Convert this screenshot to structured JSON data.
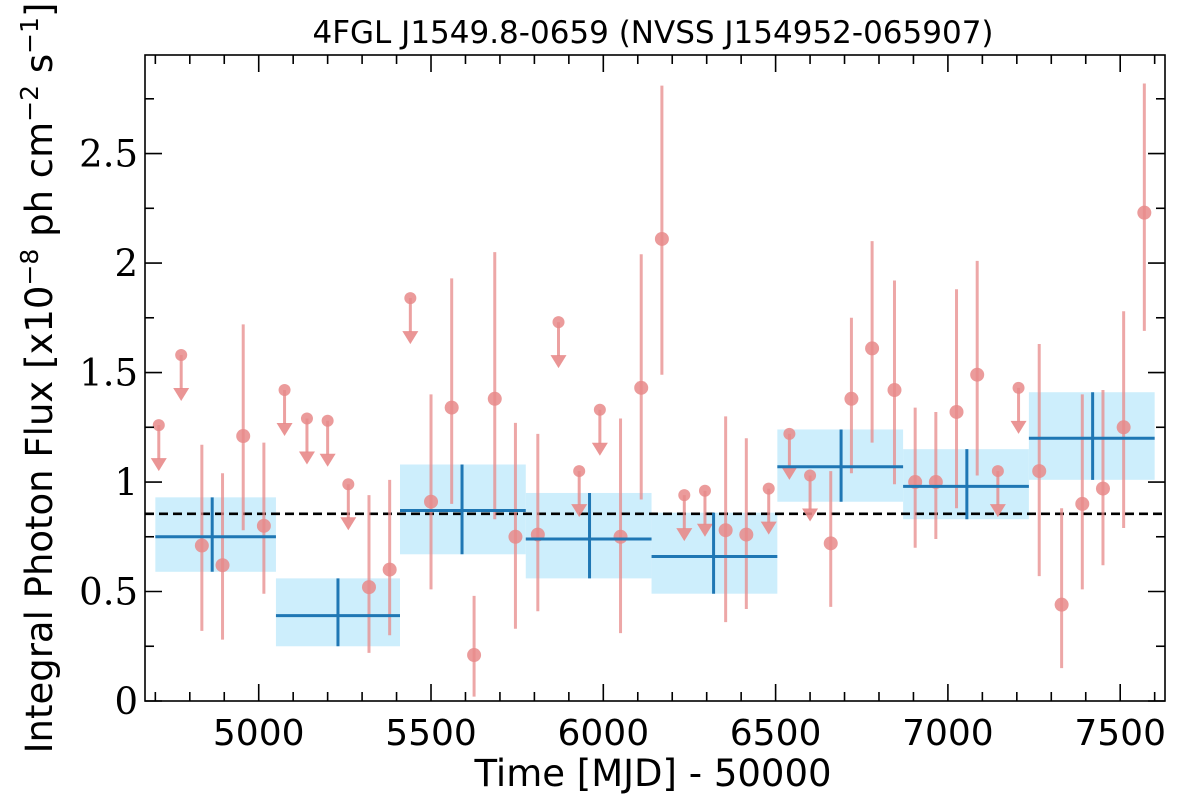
{
  "chart_data": {
    "type": "scatter",
    "title": "4FGL J1549.8-0659 (NVSS J154952-065907)",
    "xlabel": "Time [MJD] - 50000",
    "ylabel": "Integral Photon Flux [x10",
    "ylabel_exp1": "−8",
    "ylabel_mid": " ph cm",
    "ylabel_exp2": "−2",
    "ylabel_s": " s",
    "ylabel_exp3": "−1",
    "ylabel_end": "]",
    "xlim": [
      4670,
      7630
    ],
    "ylim": [
      0,
      2.95
    ],
    "xticks": [
      5000,
      5500,
      6000,
      6500,
      7000,
      7500
    ],
    "xtick_labels": [
      "5000",
      "5500",
      "6000",
      "6500",
      "7000",
      "7500"
    ],
    "yticks": [
      0,
      0.5,
      1,
      1.5,
      2,
      2.5
    ],
    "ytick_labels": [
      "0",
      "0.5",
      "1",
      "1.5",
      "2",
      "2.5"
    ],
    "mean_flux": 0.855,
    "colors": {
      "points": "#e88a8a",
      "bins": "#1f77b4",
      "bin_fill": "#cdeefc",
      "mean_line": "#000000"
    },
    "binned_series": [
      {
        "x": 4865,
        "x_lo": 4700,
        "x_hi": 5050,
        "y": 0.75,
        "y_lo": 0.59,
        "y_hi": 0.93
      },
      {
        "x": 5230,
        "x_lo": 5050,
        "x_hi": 5410,
        "y": 0.39,
        "y_lo": 0.25,
        "y_hi": 0.56
      },
      {
        "x": 5590,
        "x_lo": 5410,
        "x_hi": 5775,
        "y": 0.87,
        "y_lo": 0.67,
        "y_hi": 1.08
      },
      {
        "x": 5960,
        "x_lo": 5775,
        "x_hi": 6140,
        "y": 0.74,
        "y_lo": 0.56,
        "y_hi": 0.95
      },
      {
        "x": 6320,
        "x_lo": 6140,
        "x_hi": 6505,
        "y": 0.66,
        "y_lo": 0.49,
        "y_hi": 0.86
      },
      {
        "x": 6690,
        "x_lo": 6505,
        "x_hi": 6870,
        "y": 1.07,
        "y_lo": 0.91,
        "y_hi": 1.24
      },
      {
        "x": 7055,
        "x_lo": 6870,
        "x_hi": 7235,
        "y": 0.98,
        "y_lo": 0.83,
        "y_hi": 1.15
      },
      {
        "x": 7420,
        "x_lo": 7235,
        "x_hi": 7600,
        "y": 1.2,
        "y_lo": 1.01,
        "y_hi": 1.41
      }
    ],
    "detections": [
      {
        "x": 4835,
        "y": 0.71,
        "y_lo": 0.32,
        "y_hi": 1.17
      },
      {
        "x": 4895,
        "y": 0.62,
        "y_lo": 0.28,
        "y_hi": 1.04
      },
      {
        "x": 4955,
        "y": 1.21,
        "y_lo": 0.78,
        "y_hi": 1.72
      },
      {
        "x": 5015,
        "y": 0.8,
        "y_lo": 0.49,
        "y_hi": 1.18
      },
      {
        "x": 5320,
        "y": 0.52,
        "y_lo": 0.22,
        "y_hi": 0.94
      },
      {
        "x": 5380,
        "y": 0.6,
        "y_lo": 0.3,
        "y_hi": 1.01
      },
      {
        "x": 5500,
        "y": 0.91,
        "y_lo": 0.51,
        "y_hi": 1.4
      },
      {
        "x": 5560,
        "y": 1.34,
        "y_lo": 0.9,
        "y_hi": 1.93
      },
      {
        "x": 5625,
        "y": 0.21,
        "y_lo": 0.02,
        "y_hi": 0.48
      },
      {
        "x": 5685,
        "y": 1.38,
        "y_lo": 0.83,
        "y_hi": 2.05
      },
      {
        "x": 5745,
        "y": 0.75,
        "y_lo": 0.33,
        "y_hi": 1.27
      },
      {
        "x": 5810,
        "y": 0.76,
        "y_lo": 0.41,
        "y_hi": 1.22
      },
      {
        "x": 6050,
        "y": 0.75,
        "y_lo": 0.31,
        "y_hi": 1.29
      },
      {
        "x": 6110,
        "y": 1.43,
        "y_lo": 0.92,
        "y_hi": 2.04
      },
      {
        "x": 6170,
        "y": 2.11,
        "y_lo": 1.49,
        "y_hi": 2.81
      },
      {
        "x": 6355,
        "y": 0.78,
        "y_lo": 0.36,
        "y_hi": 1.3
      },
      {
        "x": 6415,
        "y": 0.76,
        "y_lo": 0.42,
        "y_hi": 1.2
      },
      {
        "x": 6660,
        "y": 0.72,
        "y_lo": 0.43,
        "y_hi": 1.05
      },
      {
        "x": 6720,
        "y": 1.38,
        "y_lo": 1.04,
        "y_hi": 1.75
      },
      {
        "x": 6780,
        "y": 1.61,
        "y_lo": 1.18,
        "y_hi": 2.1
      },
      {
        "x": 6845,
        "y": 1.42,
        "y_lo": 0.99,
        "y_hi": 1.92
      },
      {
        "x": 6905,
        "y": 1.0,
        "y_lo": 0.7,
        "y_hi": 1.34
      },
      {
        "x": 6965,
        "y": 1.0,
        "y_lo": 0.74,
        "y_hi": 1.32
      },
      {
        "x": 7025,
        "y": 1.32,
        "y_lo": 0.88,
        "y_hi": 1.88
      },
      {
        "x": 7085,
        "y": 1.49,
        "y_lo": 1.03,
        "y_hi": 2.01
      },
      {
        "x": 7265,
        "y": 1.05,
        "y_lo": 0.57,
        "y_hi": 1.63
      },
      {
        "x": 7330,
        "y": 0.44,
        "y_lo": 0.15,
        "y_hi": 0.88
      },
      {
        "x": 7390,
        "y": 0.9,
        "y_lo": 0.51,
        "y_hi": 1.4
      },
      {
        "x": 7450,
        "y": 0.97,
        "y_lo": 0.62,
        "y_hi": 1.42
      },
      {
        "x": 7510,
        "y": 1.25,
        "y_lo": 0.79,
        "y_hi": 1.78
      },
      {
        "x": 7570,
        "y": 2.23,
        "y_lo": 1.69,
        "y_hi": 2.82
      }
    ],
    "upper_limits": [
      {
        "x": 4710,
        "y": 1.26
      },
      {
        "x": 4775,
        "y": 1.58
      },
      {
        "x": 5075,
        "y": 1.42
      },
      {
        "x": 5140,
        "y": 1.29
      },
      {
        "x": 5200,
        "y": 1.28
      },
      {
        "x": 5260,
        "y": 0.99
      },
      {
        "x": 5440,
        "y": 1.84
      },
      {
        "x": 5870,
        "y": 1.73
      },
      {
        "x": 5930,
        "y": 1.05
      },
      {
        "x": 5990,
        "y": 1.33
      },
      {
        "x": 6235,
        "y": 0.94
      },
      {
        "x": 6295,
        "y": 0.96
      },
      {
        "x": 6480,
        "y": 0.97
      },
      {
        "x": 6540,
        "y": 1.22
      },
      {
        "x": 6600,
        "y": 1.03
      },
      {
        "x": 7145,
        "y": 1.05
      },
      {
        "x": 7205,
        "y": 1.43
      }
    ]
  }
}
